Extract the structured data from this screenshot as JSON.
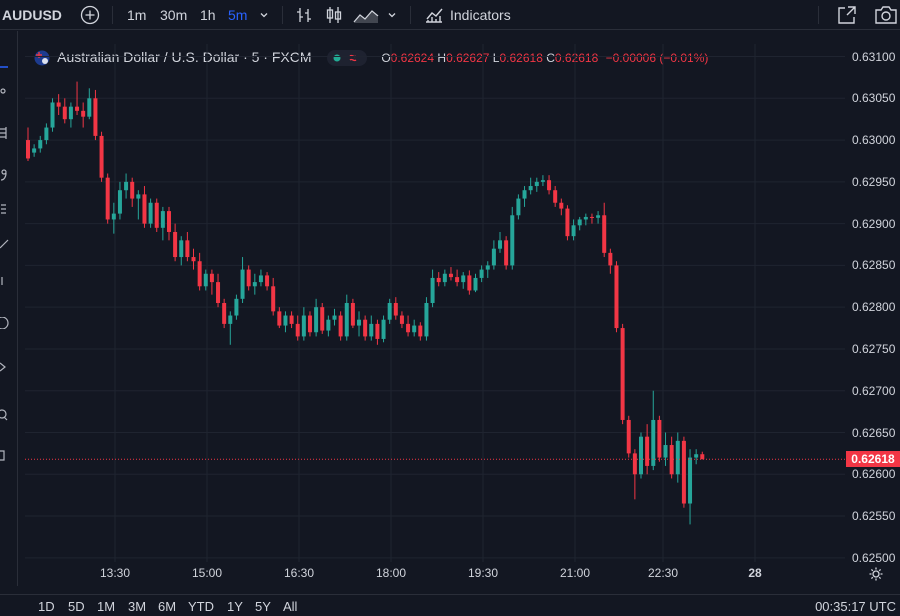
{
  "symbol": "AUDUSD",
  "toolbar": {
    "intervals": [
      "1m",
      "30m",
      "1h",
      "5m"
    ],
    "active_interval": "5m",
    "indicators_label": "Indicators"
  },
  "legend": {
    "title": "Australian Dollar / U.S. Dollar · 5 · FXCM",
    "open_label": "O",
    "open": "0.62624",
    "high_label": "H",
    "high": "0.62627",
    "low_label": "L",
    "low": "0.62618",
    "close_label": "C",
    "close": "0.62618",
    "change": "−0.00006 (−0.01%)"
  },
  "price_axis": [
    "0.63100",
    "0.63050",
    "0.63000",
    "0.62950",
    "0.62900",
    "0.62850",
    "0.62800",
    "0.62750",
    "0.62700",
    "0.62650",
    "0.62600",
    "0.62550",
    "0.62500"
  ],
  "time_axis": [
    "13:30",
    "15:00",
    "16:30",
    "18:00",
    "19:30",
    "21:00",
    "22:30",
    "28"
  ],
  "last_price": "0.62618",
  "ranges": [
    "1D",
    "5D",
    "1M",
    "3M",
    "6M",
    "YTD",
    "1Y",
    "5Y",
    "All"
  ],
  "clock": "00:35:17 UTC",
  "colors": {
    "up": "#26a69a",
    "down": "#f23645",
    "background": "#131722",
    "grid": "#1f2430",
    "accent": "#2962ff"
  },
  "chart_data": {
    "type": "candlestick",
    "interval_minutes": 5,
    "y_range": [
      0.62495,
      0.63115
    ],
    "candles": [
      [
        0.63,
        0.63015,
        0.62975,
        0.62978
      ],
      [
        0.62985,
        0.62995,
        0.6298,
        0.6299
      ],
      [
        0.6299,
        0.63005,
        0.62985,
        0.63
      ],
      [
        0.63,
        0.6302,
        0.62995,
        0.63015
      ],
      [
        0.63015,
        0.6305,
        0.6301,
        0.63045
      ],
      [
        0.63045,
        0.63055,
        0.6303,
        0.6304
      ],
      [
        0.6304,
        0.6305,
        0.6302,
        0.63025
      ],
      [
        0.63025,
        0.63045,
        0.63015,
        0.6304
      ],
      [
        0.6304,
        0.6307,
        0.6303,
        0.63035
      ],
      [
        0.63035,
        0.63045,
        0.63015,
        0.63028
      ],
      [
        0.63028,
        0.63062,
        0.63025,
        0.6305
      ],
      [
        0.6305,
        0.6306,
        0.63,
        0.63005
      ],
      [
        0.63005,
        0.6301,
        0.6295,
        0.62955
      ],
      [
        0.62955,
        0.6296,
        0.629,
        0.62905
      ],
      [
        0.62905,
        0.62925,
        0.62888,
        0.62912
      ],
      [
        0.62912,
        0.6295,
        0.62905,
        0.6294
      ],
      [
        0.6294,
        0.6296,
        0.6293,
        0.6295
      ],
      [
        0.6295,
        0.62955,
        0.6292,
        0.6293
      ],
      [
        0.6293,
        0.6294,
        0.62905,
        0.62935
      ],
      [
        0.62935,
        0.62945,
        0.62895,
        0.629
      ],
      [
        0.629,
        0.6293,
        0.62895,
        0.62925
      ],
      [
        0.62925,
        0.6293,
        0.6289,
        0.62895
      ],
      [
        0.62895,
        0.6292,
        0.6288,
        0.62915
      ],
      [
        0.62915,
        0.6292,
        0.6288,
        0.6289
      ],
      [
        0.6289,
        0.629,
        0.62855,
        0.6286
      ],
      [
        0.6286,
        0.62885,
        0.6285,
        0.6288
      ],
      [
        0.6288,
        0.6289,
        0.62855,
        0.6286
      ],
      [
        0.6286,
        0.6287,
        0.62845,
        0.62855
      ],
      [
        0.62855,
        0.62865,
        0.6282,
        0.62825
      ],
      [
        0.62825,
        0.62845,
        0.6282,
        0.6284
      ],
      [
        0.6284,
        0.62845,
        0.62815,
        0.6283
      ],
      [
        0.6283,
        0.6284,
        0.628,
        0.62805
      ],
      [
        0.62805,
        0.6281,
        0.62775,
        0.6278
      ],
      [
        0.6278,
        0.62795,
        0.62755,
        0.6279
      ],
      [
        0.6279,
        0.62815,
        0.62785,
        0.6281
      ],
      [
        0.6281,
        0.6286,
        0.62805,
        0.62845
      ],
      [
        0.62845,
        0.6285,
        0.6282,
        0.62825
      ],
      [
        0.62825,
        0.6284,
        0.62815,
        0.6283
      ],
      [
        0.6283,
        0.62845,
        0.62825,
        0.62838
      ],
      [
        0.62838,
        0.62842,
        0.6282,
        0.62825
      ],
      [
        0.62825,
        0.62835,
        0.6279,
        0.62795
      ],
      [
        0.62795,
        0.628,
        0.62775,
        0.62778
      ],
      [
        0.62778,
        0.62795,
        0.6277,
        0.6279
      ],
      [
        0.6279,
        0.62795,
        0.62775,
        0.6278
      ],
      [
        0.6278,
        0.6279,
        0.6276,
        0.62765
      ],
      [
        0.62765,
        0.628,
        0.6276,
        0.6279
      ],
      [
        0.6279,
        0.62795,
        0.62765,
        0.6277
      ],
      [
        0.6277,
        0.6281,
        0.62765,
        0.628
      ],
      [
        0.628,
        0.62805,
        0.62768,
        0.62772
      ],
      [
        0.62772,
        0.6279,
        0.62765,
        0.62785
      ],
      [
        0.62785,
        0.62798,
        0.62778,
        0.6279
      ],
      [
        0.6279,
        0.62795,
        0.6276,
        0.62765
      ],
      [
        0.62765,
        0.62815,
        0.6276,
        0.62805
      ],
      [
        0.62805,
        0.6281,
        0.62775,
        0.62778
      ],
      [
        0.62778,
        0.62795,
        0.62765,
        0.62785
      ],
      [
        0.62785,
        0.6279,
        0.6276,
        0.62765
      ],
      [
        0.62765,
        0.6279,
        0.6276,
        0.6278
      ],
      [
        0.6278,
        0.62785,
        0.62755,
        0.62762
      ],
      [
        0.62762,
        0.6279,
        0.62758,
        0.62785
      ],
      [
        0.62785,
        0.6281,
        0.6278,
        0.62805
      ],
      [
        0.62805,
        0.62812,
        0.62785,
        0.6279
      ],
      [
        0.6279,
        0.62795,
        0.62775,
        0.6278
      ],
      [
        0.6278,
        0.6279,
        0.62765,
        0.6277
      ],
      [
        0.6277,
        0.62785,
        0.62765,
        0.62778
      ],
      [
        0.62778,
        0.62782,
        0.6276,
        0.62765
      ],
      [
        0.62765,
        0.62812,
        0.6276,
        0.62805
      ],
      [
        0.62805,
        0.62845,
        0.628,
        0.62835
      ],
      [
        0.62835,
        0.62842,
        0.62825,
        0.6283
      ],
      [
        0.6283,
        0.62845,
        0.62825,
        0.6284
      ],
      [
        0.6284,
        0.62848,
        0.62832,
        0.62836
      ],
      [
        0.62836,
        0.62845,
        0.62825,
        0.6283
      ],
      [
        0.6283,
        0.62842,
        0.62822,
        0.62838
      ],
      [
        0.62838,
        0.62844,
        0.62815,
        0.6282
      ],
      [
        0.6282,
        0.6284,
        0.62818,
        0.62835
      ],
      [
        0.62835,
        0.6285,
        0.6283,
        0.62845
      ],
      [
        0.62845,
        0.62855,
        0.62835,
        0.6285
      ],
      [
        0.6285,
        0.6288,
        0.62845,
        0.6287
      ],
      [
        0.6287,
        0.6289,
        0.62865,
        0.6288
      ],
      [
        0.6288,
        0.62885,
        0.62845,
        0.6285
      ],
      [
        0.6285,
        0.6292,
        0.62845,
        0.6291
      ],
      [
        0.6291,
        0.62935,
        0.62905,
        0.6293
      ],
      [
        0.6293,
        0.62945,
        0.6292,
        0.6294
      ],
      [
        0.6294,
        0.62955,
        0.62935,
        0.62945
      ],
      [
        0.62945,
        0.62955,
        0.62938,
        0.6295
      ],
      [
        0.6295,
        0.62958,
        0.62945,
        0.62952
      ],
      [
        0.62952,
        0.62958,
        0.62935,
        0.6294
      ],
      [
        0.6294,
        0.62945,
        0.6292,
        0.62925
      ],
      [
        0.62925,
        0.6293,
        0.6291,
        0.62918
      ],
      [
        0.62918,
        0.62922,
        0.6288,
        0.62885
      ],
      [
        0.62885,
        0.62905,
        0.6288,
        0.62898
      ],
      [
        0.62898,
        0.62908,
        0.62892,
        0.62905
      ],
      [
        0.62905,
        0.62912,
        0.62898,
        0.62908
      ],
      [
        0.62908,
        0.62912,
        0.629,
        0.62907
      ],
      [
        0.62907,
        0.62915,
        0.629,
        0.6291
      ],
      [
        0.6291,
        0.62925,
        0.6286,
        0.62865
      ],
      [
        0.62865,
        0.6287,
        0.6284,
        0.6285
      ],
      [
        0.6285,
        0.62855,
        0.6277,
        0.62775
      ],
      [
        0.62775,
        0.6278,
        0.6266,
        0.62665
      ],
      [
        0.62665,
        0.6267,
        0.6262,
        0.62625
      ],
      [
        0.62625,
        0.6263,
        0.6257,
        0.626
      ],
      [
        0.626,
        0.6265,
        0.62595,
        0.62645
      ],
      [
        0.62645,
        0.6266,
        0.626,
        0.6261
      ],
      [
        0.6261,
        0.627,
        0.62605,
        0.62665
      ],
      [
        0.62665,
        0.6267,
        0.62615,
        0.6262
      ],
      [
        0.6262,
        0.6265,
        0.6261,
        0.62635
      ],
      [
        0.62635,
        0.62645,
        0.62595,
        0.626
      ],
      [
        0.626,
        0.6265,
        0.6259,
        0.6264
      ],
      [
        0.6264,
        0.62645,
        0.6256,
        0.62565
      ],
      [
        0.62565,
        0.6263,
        0.6254,
        0.6262
      ],
      [
        0.6262,
        0.6263,
        0.62612,
        0.62624
      ],
      [
        0.62624,
        0.62627,
        0.62618,
        0.62618
      ]
    ]
  }
}
